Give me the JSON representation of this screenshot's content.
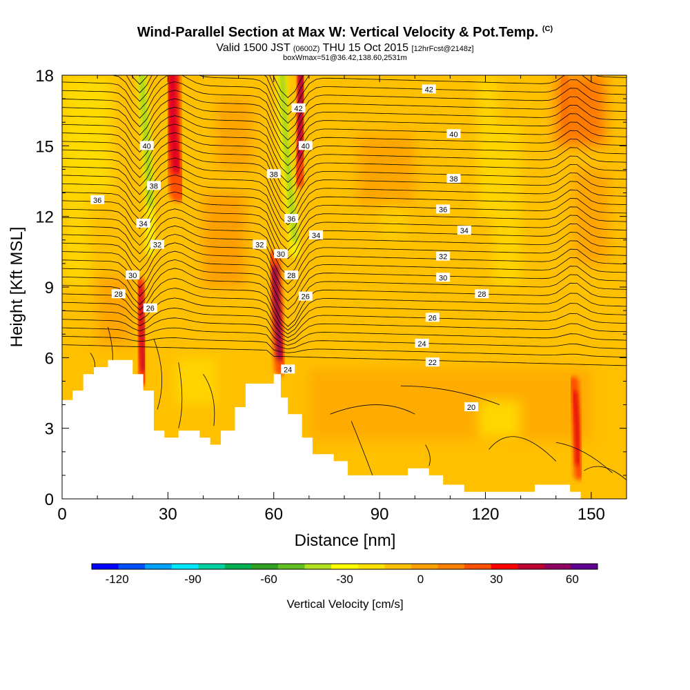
{
  "title": {
    "main": "Wind-Parallel Section at Max W: Vertical Velocity & Pot.Temp.",
    "copyright": "(C)",
    "valid_prefix": "Valid 1500 JST",
    "valid_utc": "(0600Z)",
    "valid_date": "THU 15 Oct 2015",
    "forecast": "[12hrFcst@2148z]",
    "box_info": "boxWmax=51@36.42,138.60,2531m"
  },
  "chart_data": {
    "type": "heatmap",
    "xlabel": "Distance [nm]",
    "ylabel": "Height [Kft MSL]",
    "xlim": [
      0,
      160
    ],
    "ylim": [
      0,
      18
    ],
    "x_ticks": [
      0,
      30,
      60,
      90,
      120,
      150
    ],
    "y_ticks": [
      0,
      3,
      6,
      9,
      12,
      15,
      18
    ],
    "terrain": [
      [
        0,
        4.2
      ],
      [
        3,
        4.2
      ],
      [
        3,
        4.6
      ],
      [
        6,
        4.6
      ],
      [
        6,
        5.3
      ],
      [
        9,
        5.3
      ],
      [
        9,
        5.6
      ],
      [
        13,
        5.6
      ],
      [
        13,
        5.9
      ],
      [
        20,
        5.9
      ],
      [
        20,
        5.3
      ],
      [
        23,
        5.3
      ],
      [
        23,
        4.6
      ],
      [
        26,
        4.6
      ],
      [
        26,
        2.9
      ],
      [
        29,
        2.9
      ],
      [
        29,
        2.6
      ],
      [
        33,
        2.6
      ],
      [
        33,
        2.9
      ],
      [
        39,
        2.9
      ],
      [
        39,
        2.6
      ],
      [
        42,
        2.6
      ],
      [
        42,
        2.3
      ],
      [
        45,
        2.3
      ],
      [
        45,
        2.9
      ],
      [
        49,
        2.9
      ],
      [
        49,
        3.9
      ],
      [
        52,
        3.9
      ],
      [
        52,
        4.9
      ],
      [
        60,
        4.9
      ],
      [
        60,
        5.3
      ],
      [
        62,
        5.3
      ],
      [
        62,
        4.3
      ],
      [
        64,
        4.3
      ],
      [
        64,
        3.6
      ],
      [
        68,
        3.6
      ],
      [
        68,
        2.6
      ],
      [
        71,
        2.6
      ],
      [
        71,
        1.9
      ],
      [
        77,
        1.9
      ],
      [
        77,
        1.6
      ],
      [
        81,
        1.6
      ],
      [
        81,
        1.0
      ],
      [
        98,
        1.0
      ],
      [
        98,
        1.3
      ],
      [
        104,
        1.3
      ],
      [
        104,
        1.0
      ],
      [
        108,
        1.0
      ],
      [
        108,
        0.6
      ],
      [
        114,
        0.6
      ],
      [
        114,
        0.3
      ],
      [
        134,
        0.3
      ],
      [
        134,
        0.6
      ],
      [
        144,
        0.6
      ],
      [
        144,
        0.3
      ],
      [
        147,
        0.3
      ],
      [
        147,
        0
      ],
      [
        0,
        0
      ]
    ],
    "vertical_velocity_features": [
      {
        "x": 23,
        "y": 7.5,
        "value": 45
      },
      {
        "x": 24,
        "y": 16.5,
        "value": -40
      },
      {
        "x": 33,
        "y": 15.5,
        "value": 40
      },
      {
        "x": 62,
        "y": 6.8,
        "value": 60
      },
      {
        "x": 64,
        "y": 14,
        "value": -35
      },
      {
        "x": 68,
        "y": 15.5,
        "value": 45
      },
      {
        "x": 146,
        "y": 3,
        "value": 40
      }
    ],
    "pot_temp_contour_labels": [
      {
        "text": "42",
        "x": 104,
        "y": 17.4
      },
      {
        "text": "42",
        "x": 67,
        "y": 16.6
      },
      {
        "text": "40",
        "x": 24,
        "y": 15.0
      },
      {
        "text": "40",
        "x": 69,
        "y": 15.0
      },
      {
        "text": "40",
        "x": 111,
        "y": 15.5
      },
      {
        "text": "38",
        "x": 60,
        "y": 13.8
      },
      {
        "text": "38",
        "x": 26,
        "y": 13.3
      },
      {
        "text": "38",
        "x": 111,
        "y": 13.6
      },
      {
        "text": "36",
        "x": 10,
        "y": 12.7
      },
      {
        "text": "36",
        "x": 65,
        "y": 11.9
      },
      {
        "text": "36",
        "x": 108,
        "y": 12.3
      },
      {
        "text": "34",
        "x": 23,
        "y": 11.7
      },
      {
        "text": "34",
        "x": 72,
        "y": 11.2
      },
      {
        "text": "34",
        "x": 114,
        "y": 11.4
      },
      {
        "text": "32",
        "x": 27,
        "y": 10.8
      },
      {
        "text": "32",
        "x": 56,
        "y": 10.8
      },
      {
        "text": "32",
        "x": 108,
        "y": 10.3
      },
      {
        "text": "30",
        "x": 20,
        "y": 9.5
      },
      {
        "text": "30",
        "x": 62,
        "y": 10.4
      },
      {
        "text": "30",
        "x": 108,
        "y": 9.4
      },
      {
        "text": "28",
        "x": 16,
        "y": 8.7
      },
      {
        "text": "28",
        "x": 65,
        "y": 9.5
      },
      {
        "text": "28",
        "x": 119,
        "y": 8.7
      },
      {
        "text": "26",
        "x": 25,
        "y": 8.1
      },
      {
        "text": "26",
        "x": 69,
        "y": 8.6
      },
      {
        "text": "26",
        "x": 105,
        "y": 7.7
      },
      {
        "text": "24",
        "x": 64,
        "y": 5.5
      },
      {
        "text": "24",
        "x": 102,
        "y": 6.6
      },
      {
        "text": "22",
        "x": 105,
        "y": 5.8
      },
      {
        "text": "20",
        "x": 116,
        "y": 3.9
      }
    ],
    "colorbar": {
      "label": "Vertical Velocity [cm/s]",
      "tick_labels": [
        "-120",
        "-90",
        "-60",
        "-30",
        "0",
        "30",
        "60"
      ],
      "tick_values": [
        -120,
        -90,
        -60,
        -30,
        0,
        30,
        60
      ],
      "range": [
        -130,
        70
      ],
      "colors": [
        "#0000ff",
        "#0050ff",
        "#00a0ff",
        "#00e6ff",
        "#00d0a0",
        "#00b050",
        "#30a020",
        "#60c020",
        "#b0e020",
        "#ffff00",
        "#ffe000",
        "#ffc000",
        "#ffa000",
        "#ff8000",
        "#ff5000",
        "#ff0000",
        "#c00030",
        "#900060",
        "#600090"
      ]
    }
  }
}
